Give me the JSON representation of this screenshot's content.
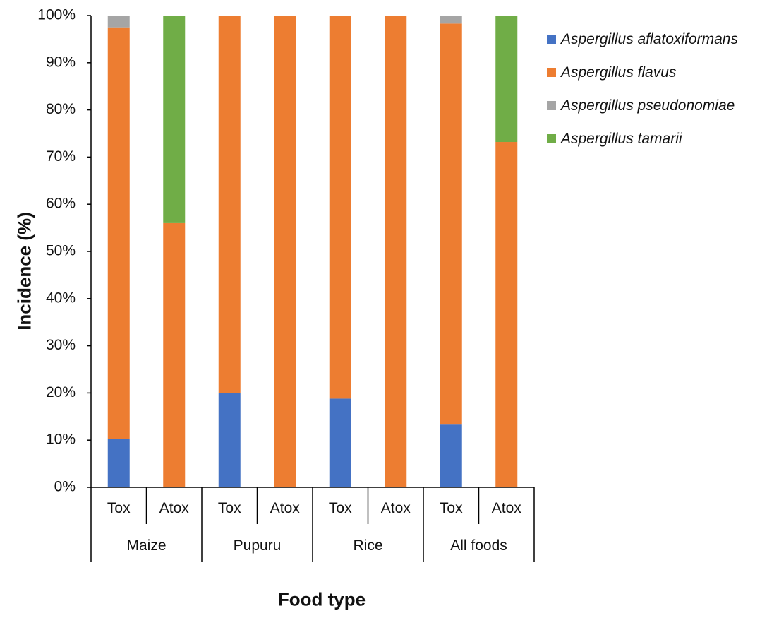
{
  "chart_data": {
    "type": "bar",
    "stacked": true,
    "xlabel": "Food type",
    "ylabel": "Incidence (%)",
    "ylim": [
      0,
      100
    ],
    "yticks": [
      "0%",
      "10%",
      "20%",
      "30%",
      "40%",
      "50%",
      "60%",
      "70%",
      "80%",
      "90%",
      "100%"
    ],
    "groups": [
      "Maize",
      "Pupuru",
      "Rice",
      "All foods"
    ],
    "categories": [
      "Tox",
      "Atox",
      "Tox",
      "Atox",
      "Tox",
      "Atox",
      "Tox",
      "Atox"
    ],
    "series": [
      {
        "name": "Aspergillus aflatoxiformans",
        "color": "#4472C4",
        "values": [
          10.2,
          0,
          20,
          0,
          18.8,
          0,
          13.3,
          0
        ]
      },
      {
        "name": "Aspergillus flavus",
        "color": "#ED7D31",
        "values": [
          87.3,
          56,
          80,
          100,
          81.2,
          100,
          85,
          73.2
        ]
      },
      {
        "name": "Aspergillus pseudonomiae",
        "color": "#A5A5A5",
        "values": [
          2.5,
          0,
          0,
          0,
          0,
          0,
          1.7,
          0
        ]
      },
      {
        "name": "Aspergillus tamarii",
        "color": "#70AD47",
        "values": [
          0,
          44,
          0,
          0,
          0,
          0,
          0,
          26.8
        ]
      }
    ]
  }
}
